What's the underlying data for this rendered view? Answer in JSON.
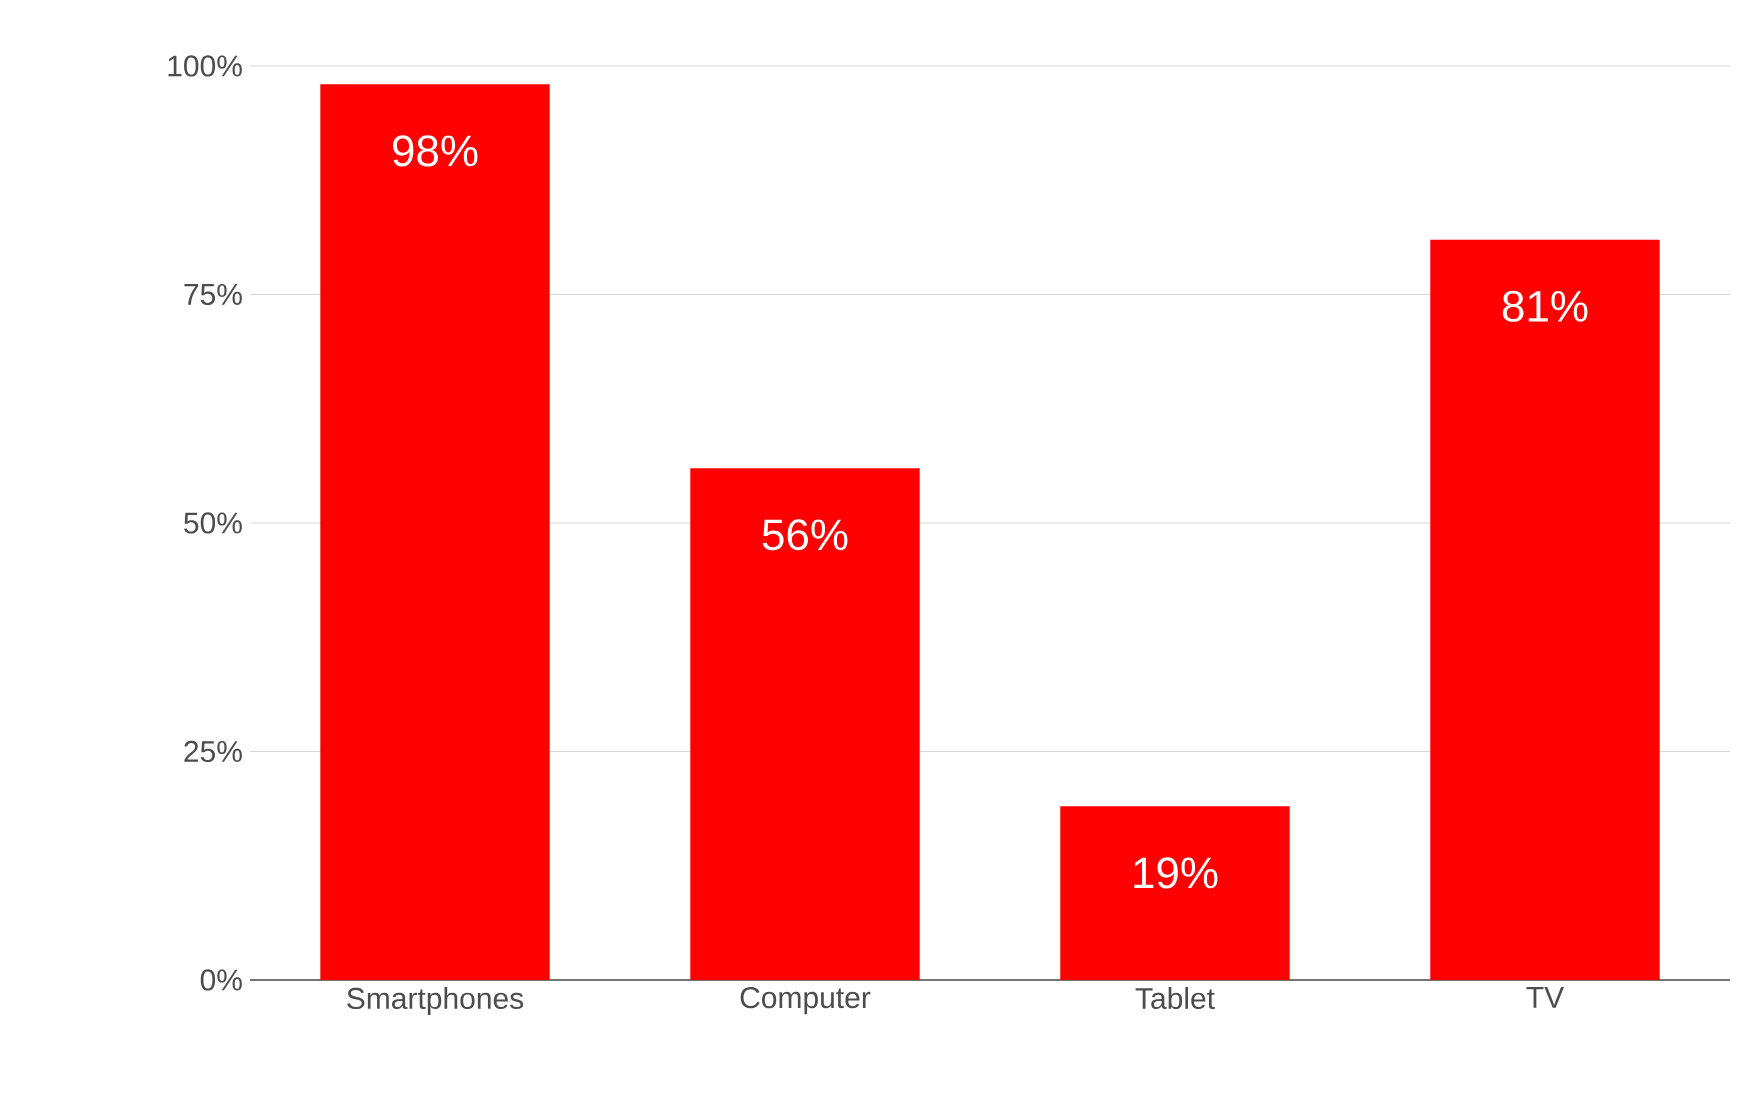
{
  "chart_data": {
    "type": "bar",
    "categories": [
      "Smartphones",
      "Computer",
      "Tablet",
      "TV"
    ],
    "values": [
      98,
      56,
      19,
      81
    ],
    "value_labels": [
      "98%",
      "56%",
      "19%",
      "81%"
    ],
    "color": "#ff0000",
    "ylim": [
      0,
      100
    ],
    "yticks": [
      {
        "value": 0,
        "label": "0%"
      },
      {
        "value": 25,
        "label": "25%"
      },
      {
        "value": 50,
        "label": "50%"
      },
      {
        "value": 75,
        "label": "75%"
      },
      {
        "value": 100,
        "label": "100%"
      }
    ],
    "grid": "y"
  }
}
